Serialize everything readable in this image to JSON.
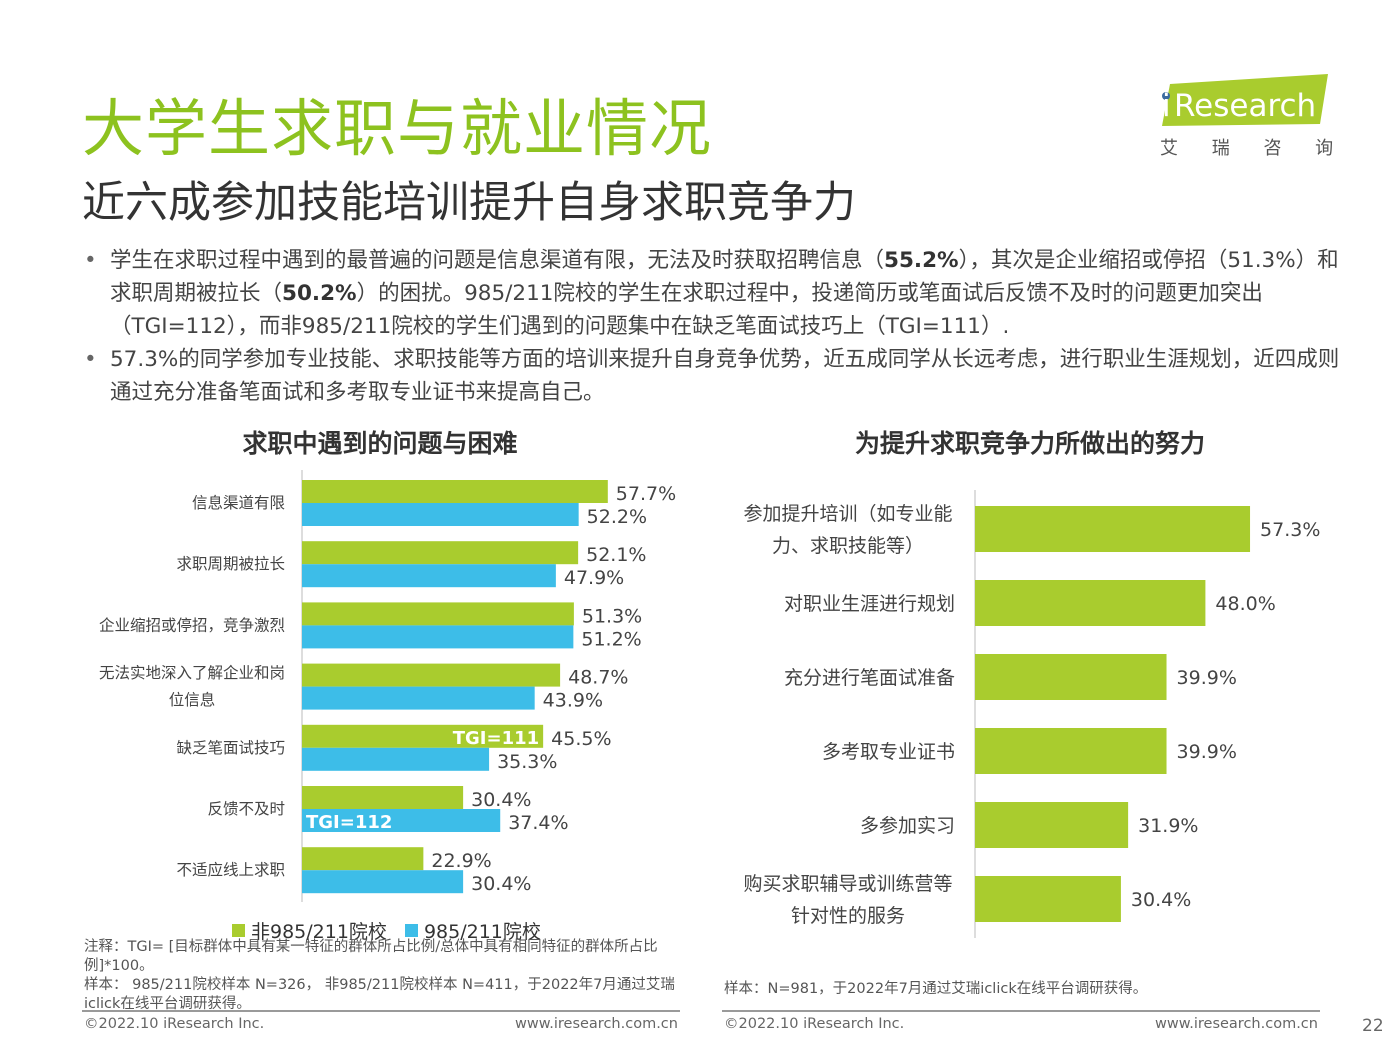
{
  "header": {
    "title": "大学生求职与就业情况",
    "subtitle": "近六成参加技能培训提升自身求职竞争力"
  },
  "logo": {
    "brand_i": "i",
    "brand_rest": "Research",
    "cn": "艾 瑞 咨 询"
  },
  "bullets": {
    "b1": {
      "t1": "学生在求职过程中遇到的最普遍的问题是信息渠道有限，无法及时获取招聘信息（",
      "v1": "55.2%",
      "t2": "），其次是企业缩招或停招（51.3%）和求职周期被拉长（",
      "v2": "50.2%",
      "t3": "）的困扰。985/211院校的学生在求职过程中，投递简历或笔面试后反馈不及时的问题更加突出（TGI=112），而非985/211院校的学生们遇到的问题集中在缺乏笔面试技巧上（TGI=111）."
    },
    "b2": "57.3%的同学参加专业技能、求职技能等方面的培训来提升自身竞争优势，近五成同学从长远考虑，进行职业生涯规划，近四成则通过充分准备笔面试和多考取专业证书来提高自己。"
  },
  "chart_data": [
    {
      "type": "bar",
      "orientation": "horizontal",
      "title": "求职中遇到的问题与困难",
      "categories": [
        "信息渠道有限",
        "求职周期被拉长",
        "企业缩招或停招，竞争激烈",
        "无法实地深入了解企业和岗位信息",
        "缺乏笔面试技巧",
        "反馈不及时",
        "不适应线上求职"
      ],
      "category_lines": [
        [
          "信息渠道有限"
        ],
        [
          "求职周期被拉长"
        ],
        [
          "企业缩招或停招，竞争激烈"
        ],
        [
          "无法实地深入了解企业和岗",
          "位信息"
        ],
        [
          "缺乏笔面试技巧"
        ],
        [
          "反馈不及时"
        ],
        [
          "不适应线上求职"
        ]
      ],
      "series": [
        {
          "name": "非985/211院校",
          "color": "#a9cc2e",
          "values": [
            57.7,
            52.1,
            51.3,
            48.7,
            45.5,
            30.4,
            22.9
          ]
        },
        {
          "name": "985/211院校",
          "color": "#3dbde8",
          "values": [
            52.2,
            47.9,
            51.2,
            43.9,
            35.3,
            37.4,
            30.4
          ]
        }
      ],
      "value_labels_series0": [
        "57.7%",
        "52.1%",
        "51.3%",
        "48.7%",
        "45.5%",
        "30.4%",
        "22.9%"
      ],
      "value_labels_series1": [
        "52.2%",
        "47.9%",
        "51.2%",
        "43.9%",
        "35.3%",
        "37.4%",
        "30.4%"
      ],
      "annotations": [
        {
          "category_index": 4,
          "series_index": 0,
          "text": "TGI=111"
        },
        {
          "category_index": 5,
          "series_index": 1,
          "text": "TGI=112"
        }
      ],
      "xlim": [
        0,
        100
      ],
      "grid": false,
      "legend": "bottom"
    },
    {
      "type": "bar",
      "orientation": "horizontal",
      "title": "为提升求职竞争力所做出的努力",
      "categories": [
        "参加提升培训（如专业能力、求职技能等）",
        "对职业生涯进行规划",
        "充分进行笔面试准备",
        "多考取专业证书",
        "多参加实习",
        "购买求职辅导或训练营等针对性的服务"
      ],
      "category_lines": [
        [
          "参加提升培训（如专业能",
          "力、求职技能等）"
        ],
        [
          "对职业生涯进行规划"
        ],
        [
          "充分进行笔面试准备"
        ],
        [
          "多考取专业证书"
        ],
        [
          "多参加实习"
        ],
        [
          "购买求职辅导或训练营等",
          "针对性的服务"
        ]
      ],
      "series": [
        {
          "color": "#a9cc2e",
          "values": [
            57.3,
            48.0,
            39.9,
            39.9,
            31.9,
            30.4
          ]
        }
      ],
      "value_labels": [
        "57.3%",
        "48.0%",
        "39.9%",
        "39.9%",
        "31.9%",
        "30.4%"
      ],
      "xlim": [
        0,
        100
      ],
      "grid": false
    }
  ],
  "legend": {
    "s0": "非985/211院校",
    "s1": "985/211院校"
  },
  "notes": {
    "left_1": "注释：TGI= [目标群体中具有某一特征的群体所占比例/总体中具有相同特征的群体所占比例]*100。",
    "left_2": "样本： 985/211院校样本 N=326， 非985/211院校样本 N=411，于2022年7月通过艾瑞iclick在线平台调研获得。",
    "right": "样本：N=981，于2022年7月通过艾瑞iclick在线平台调研获得。"
  },
  "footer": {
    "copyright_left": "©2022.10 iResearch Inc.",
    "url_left": "www.iresearch.com.cn",
    "copyright_right": "©2022.10 iResearch Inc.",
    "url_right": "www.iresearch.com.cn",
    "page_number": "22"
  },
  "colors": {
    "accent_green": "#8dc21f",
    "bar_green": "#a9cc2e",
    "bar_blue": "#3dbde8"
  }
}
